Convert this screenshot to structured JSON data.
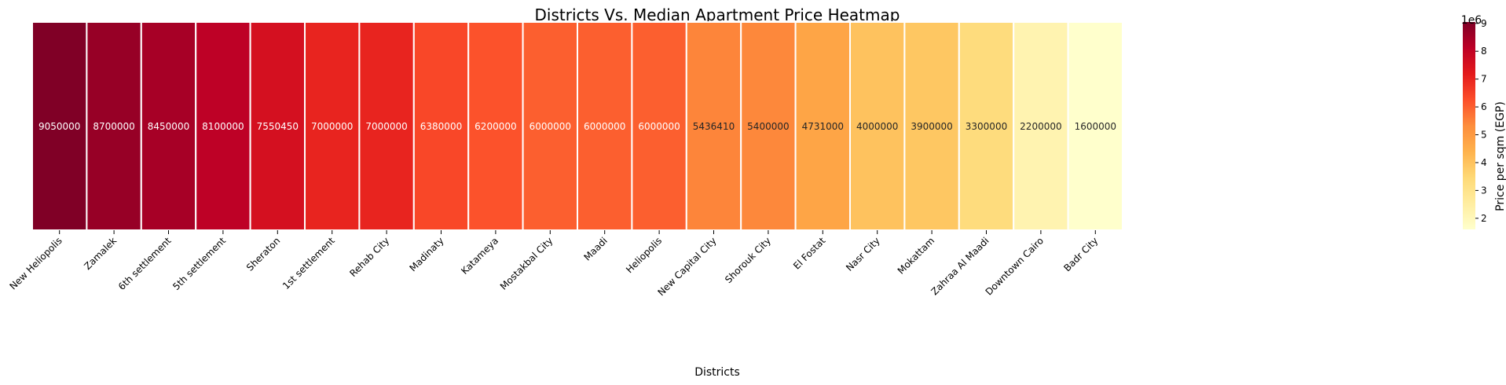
{
  "chart_data": {
    "type": "heatmap",
    "title": "Districts Vs. Median Apartment Price Heatmap",
    "xlabel": "Districts",
    "ylabel": "",
    "categories": [
      "New Heliopolis",
      "Zamalek",
      "6th settlement",
      "5th settlement",
      "Sheraton",
      "1st settlement",
      "Rehab City",
      "Madinaty",
      "Katameya",
      "Mostakbal City",
      "Maadi",
      "Heliopolis",
      "New Capital City",
      "Shorouk City",
      "El Fostat",
      "Nasr City",
      "Mokattam",
      "Zahraa Al Maadi",
      "Downtown Cairo",
      "Badr City"
    ],
    "values": [
      9050000,
      8700000,
      8450000,
      8100000,
      7550450,
      7000000,
      7000000,
      6380000,
      6200000,
      6000000,
      6000000,
      6000000,
      5436410,
      5400000,
      4731000,
      4000000,
      3900000,
      3300000,
      2200000,
      1600000
    ],
    "colorbar": {
      "label": "Price per sqm (EGP)",
      "offset_text": "1e6",
      "range": [
        1600000,
        9050000
      ],
      "ticks": [
        2,
        3,
        4,
        5,
        6,
        7,
        8,
        9
      ],
      "colormap": "YlOrRd"
    },
    "legend": "none",
    "grid": false
  }
}
